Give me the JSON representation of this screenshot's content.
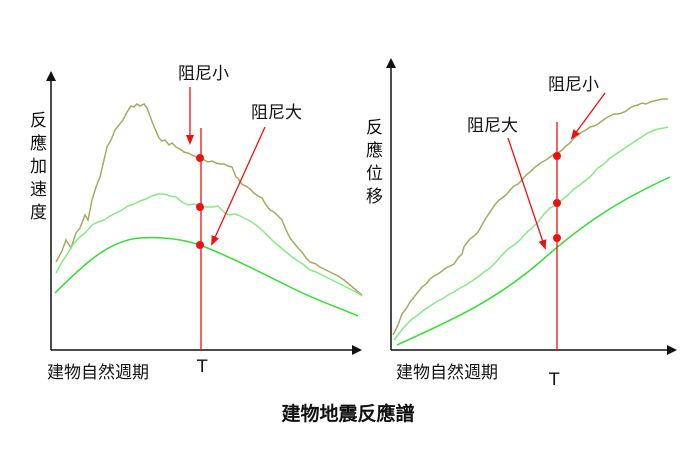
{
  "caption": "建物地震反應譜",
  "colors": {
    "low_damping": "#a5aa62",
    "mid_damping": "#88e888",
    "high_damping": "#33dd33",
    "marker": "#ee1111",
    "axis": "#111111"
  },
  "left_chart": {
    "y_axis_label": [
      "反",
      "應",
      "加",
      "速",
      "度"
    ],
    "x_axis_label": "建物自然週期",
    "period_label": "T",
    "annotation_low": "阻尼小",
    "annotation_high": "阻尼大"
  },
  "right_chart": {
    "y_axis_label": [
      "反",
      "應",
      "位",
      "移"
    ],
    "x_axis_label": "建物自然週期",
    "period_label": "T",
    "annotation_low": "阻尼小",
    "annotation_high": "阻尼大"
  }
}
